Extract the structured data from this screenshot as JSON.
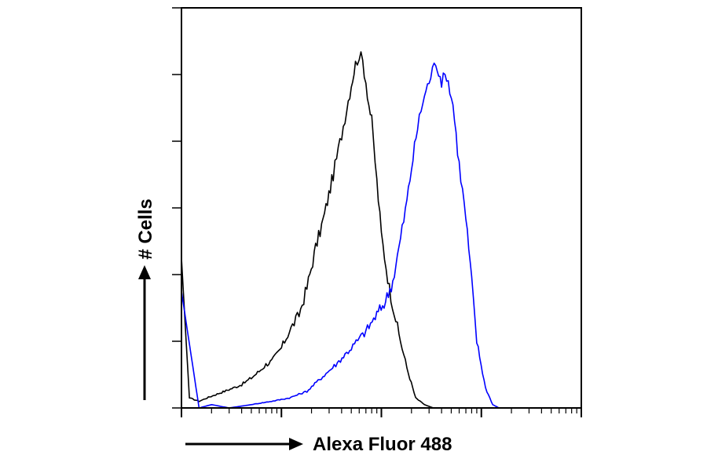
{
  "chart_data": {
    "type": "line",
    "title": "",
    "xlabel": "Alexa Fluor 488",
    "ylabel": "# Cells",
    "x_scale": "log",
    "xlim": [
      1,
      10000
    ],
    "ylim": [
      0,
      120
    ],
    "x_ticks": [],
    "y_ticks": [],
    "grid": false,
    "legend": "none",
    "series": [
      {
        "color": "#000000",
        "x": [
          1,
          1.2,
          1.5,
          1.8,
          2.2,
          2.7,
          3.3,
          4,
          5,
          6,
          7,
          8,
          10,
          12,
          15,
          18,
          22,
          27,
          33,
          40,
          45,
          50,
          55,
          60,
          65,
          70,
          75,
          80,
          90,
          100,
          120,
          150,
          180,
          220,
          270,
          330
        ],
        "y": [
          45,
          3,
          2,
          3,
          4,
          5,
          6,
          7,
          9,
          11,
          13,
          14,
          18,
          23,
          28,
          36,
          48,
          58,
          70,
          82,
          90,
          97,
          103,
          106,
          104,
          98,
          91,
          86,
          68,
          52,
          36,
          22,
          12,
          3,
          1,
          0
        ]
      },
      {
        "color": "#0000ff",
        "x": [
          1,
          1.5,
          2,
          3,
          5,
          8,
          12,
          18,
          25,
          35,
          50,
          70,
          90,
          110,
          130,
          150,
          180,
          200,
          230,
          260,
          300,
          350,
          400,
          450,
          520,
          600,
          700,
          800,
          900,
          1100,
          1300,
          1500
        ],
        "y": [
          35,
          0,
          1,
          0,
          1,
          2,
          3,
          5,
          9,
          13,
          18,
          23,
          28,
          32,
          38,
          48,
          62,
          72,
          84,
          92,
          98,
          104,
          98,
          100,
          91,
          73,
          57,
          38,
          20,
          6,
          1,
          0
        ]
      }
    ]
  }
}
